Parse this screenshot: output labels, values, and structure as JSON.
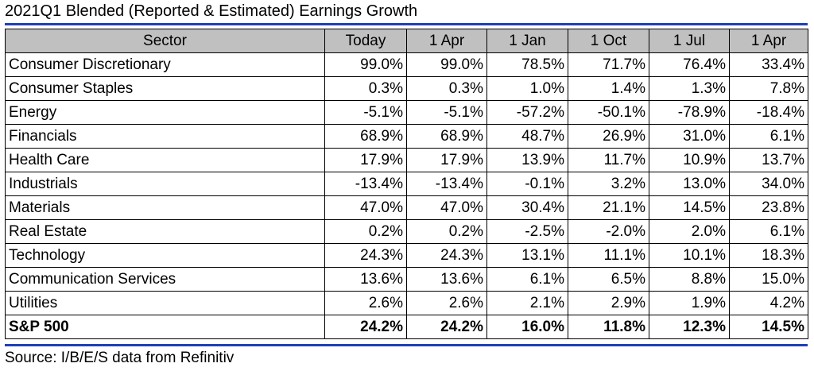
{
  "title": "2021Q1 Blended (Reported & Estimated) Earnings Growth",
  "source": "Source: I/B/E/S data from Refinitiv",
  "chart_data": {
    "type": "table",
    "title": "2021Q1 Blended (Reported & Estimated) Earnings Growth",
    "columns": [
      "Sector",
      "Today",
      "1 Apr",
      "1 Jan",
      "1 Oct",
      "1 Jul",
      "1 Apr"
    ],
    "rows": [
      {
        "sector": "Consumer Discretionary",
        "values": [
          "99.0%",
          "99.0%",
          "78.5%",
          "71.7%",
          "76.4%",
          "33.4%"
        ]
      },
      {
        "sector": "Consumer Staples",
        "values": [
          "0.3%",
          "0.3%",
          "1.0%",
          "1.4%",
          "1.3%",
          "7.8%"
        ]
      },
      {
        "sector": "Energy",
        "values": [
          "-5.1%",
          "-5.1%",
          "-57.2%",
          "-50.1%",
          "-78.9%",
          "-18.4%"
        ]
      },
      {
        "sector": "Financials",
        "values": [
          "68.9%",
          "68.9%",
          "48.7%",
          "26.9%",
          "31.0%",
          "6.1%"
        ]
      },
      {
        "sector": "Health Care",
        "values": [
          "17.9%",
          "17.9%",
          "13.9%",
          "11.7%",
          "10.9%",
          "13.7%"
        ]
      },
      {
        "sector": "Industrials",
        "values": [
          "-13.4%",
          "-13.4%",
          "-0.1%",
          "3.2%",
          "13.0%",
          "34.0%"
        ]
      },
      {
        "sector": "Materials",
        "values": [
          "47.0%",
          "47.0%",
          "30.4%",
          "21.1%",
          "14.5%",
          "23.8%"
        ]
      },
      {
        "sector": "Real Estate",
        "values": [
          "0.2%",
          "0.2%",
          "-2.5%",
          "-2.0%",
          "2.0%",
          "6.1%"
        ]
      },
      {
        "sector": "Technology",
        "values": [
          "24.3%",
          "24.3%",
          "13.1%",
          "11.1%",
          "10.1%",
          "18.3%"
        ]
      },
      {
        "sector": "Communication Services",
        "values": [
          "13.6%",
          "13.6%",
          "6.1%",
          "6.5%",
          "8.8%",
          "15.0%"
        ]
      },
      {
        "sector": "Utilities",
        "values": [
          "2.6%",
          "2.6%",
          "2.1%",
          "2.9%",
          "1.9%",
          "4.2%"
        ]
      }
    ],
    "total": {
      "sector": "S&P 500",
      "values": [
        "24.2%",
        "24.2%",
        "16.0%",
        "11.8%",
        "12.3%",
        "14.5%"
      ]
    }
  }
}
